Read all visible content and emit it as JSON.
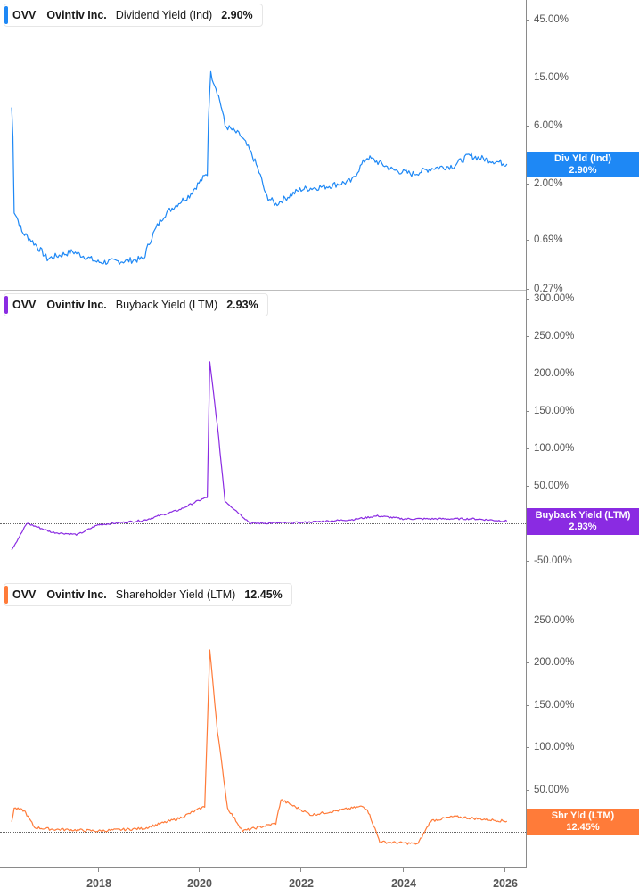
{
  "chart_data": [
    {
      "type": "line",
      "title": "OVV Ovintiv Inc. Dividend Yield (Ind)",
      "ticker": "OVV",
      "company": "Ovintiv Inc.",
      "metric": "Dividend Yield (Ind)",
      "current_value": "2.90%",
      "badge_label": "Div Yld (Ind)",
      "color": "#1e88f5",
      "y_scale": "log",
      "ytick_labels": [
        "45.00%",
        "15.00%",
        "6.00%",
        "2.00%",
        "0.69%",
        "0.27%"
      ],
      "ylim": [
        0.27,
        45
      ],
      "x": [
        2016.3,
        2016.35,
        2016.5,
        2017.0,
        2017.5,
        2018.0,
        2018.5,
        2018.9,
        2019.3,
        2019.8,
        2020.15,
        2020.22,
        2020.5,
        2020.8,
        2021.3,
        2021.5,
        2022.0,
        2022.5,
        2023.0,
        2023.3,
        2023.8,
        2024.2,
        2024.6,
        2025.0,
        2025.3,
        2026.05
      ],
      "values": [
        8.5,
        1.2,
        0.8,
        0.48,
        0.55,
        0.45,
        0.46,
        0.48,
        1.1,
        1.6,
        2.4,
        16.0,
        6.0,
        5.0,
        1.6,
        1.35,
        1.8,
        1.9,
        2.1,
        3.3,
        2.6,
        2.4,
        2.7,
        2.8,
        3.4,
        2.9
      ]
    },
    {
      "type": "line",
      "title": "OVV Ovintiv Inc. Buyback Yield (LTM)",
      "ticker": "OVV",
      "company": "Ovintiv Inc.",
      "metric": "Buyback Yield (LTM)",
      "current_value": "2.93%",
      "badge_label": "Buyback Yield (LTM)",
      "color": "#8a2be2",
      "ytick_labels": [
        "300.00%",
        "250.00%",
        "200.00%",
        "150.00%",
        "100.00%",
        "50.00%",
        "0.00%",
        "-50.00%"
      ],
      "ylim": [
        -60,
        305
      ],
      "x": [
        2016.3,
        2016.45,
        2016.6,
        2017.1,
        2017.6,
        2018.0,
        2018.9,
        2019.6,
        2019.9,
        2020.15,
        2020.2,
        2020.35,
        2020.5,
        2020.8,
        2021.0,
        2022.0,
        2023.0,
        2023.5,
        2024.0,
        2025.0,
        2025.4,
        2026.05
      ],
      "values": [
        -35,
        -18,
        0,
        -12,
        -15,
        -2,
        4,
        18,
        28,
        35,
        215,
        130,
        30,
        12,
        0,
        1,
        5,
        10,
        6,
        6,
        6,
        2.93
      ]
    },
    {
      "type": "line",
      "title": "OVV Ovintiv Inc. Shareholder Yield (LTM)",
      "ticker": "OVV",
      "company": "Ovintiv Inc.",
      "metric": "Shareholder Yield (LTM)",
      "current_value": "12.45%",
      "badge_label": "Shr Yld (LTM)",
      "color": "#ff7b39",
      "ytick_labels": [
        "250.00%",
        "200.00%",
        "150.00%",
        "100.00%",
        "50.00%",
        "0.00%"
      ],
      "ylim": [
        -40,
        275
      ],
      "x": [
        2016.3,
        2016.35,
        2016.55,
        2016.75,
        2017.1,
        2017.6,
        2018.0,
        2018.9,
        2019.6,
        2020.1,
        2020.2,
        2020.35,
        2020.55,
        2020.85,
        2021.5,
        2021.6,
        2022.2,
        2023.2,
        2023.3,
        2023.55,
        2024.3,
        2024.55,
        2025.0,
        2026.05
      ],
      "values": [
        12,
        28,
        25,
        5,
        3,
        2,
        1,
        4,
        16,
        30,
        215,
        120,
        28,
        1,
        10,
        38,
        20,
        30,
        27,
        -12,
        -14,
        13,
        18,
        12.45
      ]
    }
  ],
  "xaxis": {
    "tick_labels": [
      "2018",
      "2020",
      "2022",
      "2024",
      "2026"
    ]
  }
}
